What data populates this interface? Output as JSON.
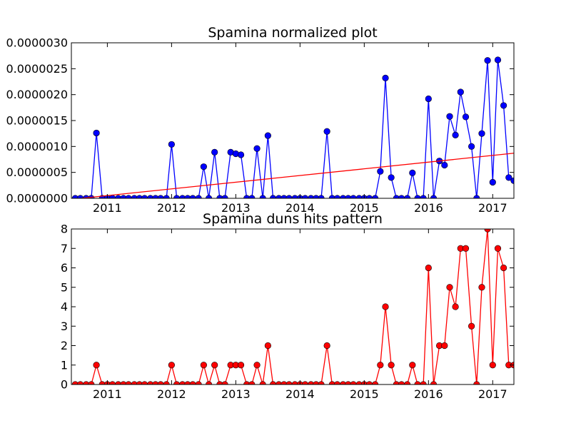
{
  "chart_data": [
    {
      "type": "line",
      "title": "Spamina normalized plot",
      "xlabel": "",
      "ylabel": "",
      "xlim": [
        2010.44,
        2017.33
      ],
      "ylim": [
        0,
        3e-06
      ],
      "x_tick_labels": [
        "2011",
        "2012",
        "2013",
        "2014",
        "2015",
        "2016",
        "2017"
      ],
      "y_tick_labels": [
        "0.0000000",
        "0.0000005",
        "0.0000010",
        "0.0000015",
        "0.0000020",
        "0.0000025",
        "0.0000030"
      ],
      "grid": false,
      "marker": "circle",
      "series": [
        {
          "color": "#0000ff",
          "x": [
            2010.5,
            2010.58,
            2010.67,
            2010.75,
            2010.83,
            2010.92,
            2011.0,
            2011.08,
            2011.17,
            2011.25,
            2011.33,
            2011.42,
            2011.5,
            2011.58,
            2011.67,
            2011.75,
            2011.83,
            2011.92,
            2012.0,
            2012.08,
            2012.17,
            2012.25,
            2012.33,
            2012.42,
            2012.5,
            2012.58,
            2012.67,
            2012.75,
            2012.83,
            2012.92,
            2013.0,
            2013.08,
            2013.17,
            2013.25,
            2013.33,
            2013.42,
            2013.5,
            2013.58,
            2013.67,
            2013.75,
            2013.83,
            2013.92,
            2014.0,
            2014.08,
            2014.17,
            2014.25,
            2014.33,
            2014.42,
            2014.5,
            2014.58,
            2014.67,
            2014.75,
            2014.83,
            2014.92,
            2015.0,
            2015.08,
            2015.17,
            2015.25,
            2015.33,
            2015.42,
            2015.5,
            2015.58,
            2015.67,
            2015.75,
            2015.83,
            2015.92,
            2016.0,
            2016.08,
            2016.17,
            2016.25,
            2016.33,
            2016.42,
            2016.5,
            2016.58,
            2016.67,
            2016.75,
            2016.83,
            2016.92,
            2017.0,
            2017.08,
            2017.17,
            2017.25,
            2017.33
          ],
          "values": [
            0,
            0,
            0,
            0,
            1.26e-06,
            0,
            0,
            0,
            0,
            0,
            0,
            0,
            0,
            0,
            0,
            0,
            0,
            0,
            1.04e-06,
            0,
            0,
            0,
            0,
            0,
            6.1e-07,
            0,
            8.9e-07,
            0,
            0,
            8.9e-07,
            8.6e-07,
            8.4e-07,
            0,
            0,
            9.6e-07,
            0,
            1.21e-06,
            0,
            0,
            0,
            0,
            0,
            0,
            0,
            0,
            0,
            0,
            1.29e-06,
            0,
            0,
            0,
            0,
            0,
            0,
            0,
            0,
            0,
            5.2e-07,
            2.32e-06,
            4e-07,
            0,
            0,
            0,
            4.9e-07,
            0,
            0,
            1.92e-06,
            0,
            7.2e-07,
            6.4e-07,
            1.58e-06,
            1.22e-06,
            2.05e-06,
            1.57e-06,
            1e-06,
            0,
            1.25e-06,
            2.66e-06,
            3.1e-07,
            2.67e-06,
            1.79e-06,
            4e-07,
            3.4e-07
          ]
        },
        {
          "color": "#ff0000",
          "style": "trend",
          "x": [
            2010.44,
            2017.33
          ],
          "values": [
            -2e-08,
            8.7e-07
          ]
        }
      ]
    },
    {
      "type": "line",
      "title": "Spamina duns hits pattern",
      "xlabel": "",
      "ylabel": "",
      "xlim": [
        2010.44,
        2017.33
      ],
      "ylim": [
        0,
        8
      ],
      "x_tick_labels": [
        "2011",
        "2012",
        "2013",
        "2014",
        "2015",
        "2016",
        "2017"
      ],
      "y_tick_labels": [
        "0",
        "1",
        "2",
        "3",
        "4",
        "5",
        "6",
        "7",
        "8"
      ],
      "grid": false,
      "marker": "circle",
      "series": [
        {
          "color": "#ff0000",
          "x": [
            2010.5,
            2010.58,
            2010.67,
            2010.75,
            2010.83,
            2010.92,
            2011.0,
            2011.08,
            2011.17,
            2011.25,
            2011.33,
            2011.42,
            2011.5,
            2011.58,
            2011.67,
            2011.75,
            2011.83,
            2011.92,
            2012.0,
            2012.08,
            2012.17,
            2012.25,
            2012.33,
            2012.42,
            2012.5,
            2012.58,
            2012.67,
            2012.75,
            2012.83,
            2012.92,
            2013.0,
            2013.08,
            2013.17,
            2013.25,
            2013.33,
            2013.42,
            2013.5,
            2013.58,
            2013.67,
            2013.75,
            2013.83,
            2013.92,
            2014.0,
            2014.08,
            2014.17,
            2014.25,
            2014.33,
            2014.42,
            2014.5,
            2014.58,
            2014.67,
            2014.75,
            2014.83,
            2014.92,
            2015.0,
            2015.08,
            2015.17,
            2015.25,
            2015.33,
            2015.42,
            2015.5,
            2015.58,
            2015.67,
            2015.75,
            2015.83,
            2015.92,
            2016.0,
            2016.08,
            2016.17,
            2016.25,
            2016.33,
            2016.42,
            2016.5,
            2016.58,
            2016.67,
            2016.75,
            2016.83,
            2016.92,
            2017.0,
            2017.08,
            2017.17,
            2017.25,
            2017.33
          ],
          "values": [
            0,
            0,
            0,
            0,
            1,
            0,
            0,
            0,
            0,
            0,
            0,
            0,
            0,
            0,
            0,
            0,
            0,
            0,
            1,
            0,
            0,
            0,
            0,
            0,
            1,
            0,
            1,
            0,
            0,
            1,
            1,
            1,
            0,
            0,
            1,
            0,
            2,
            0,
            0,
            0,
            0,
            0,
            0,
            0,
            0,
            0,
            0,
            2,
            0,
            0,
            0,
            0,
            0,
            0,
            0,
            0,
            0,
            1,
            4,
            1,
            0,
            0,
            0,
            1,
            0,
            0,
            6,
            0,
            2,
            2,
            5,
            4,
            7,
            7,
            3,
            0,
            5,
            8,
            1,
            7,
            6,
            1,
            1
          ]
        }
      ]
    }
  ]
}
